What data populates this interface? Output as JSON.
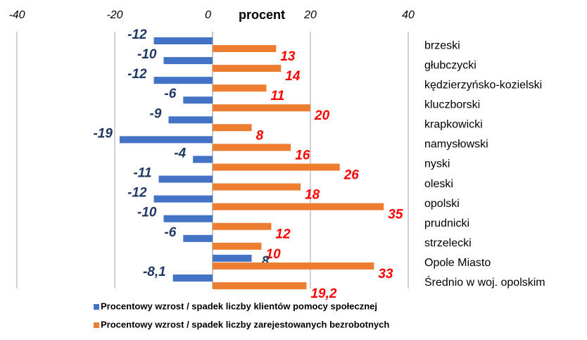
{
  "chart_data": {
    "type": "barh",
    "x_label": "procent",
    "categories": [
      "brzeski",
      "głubczycki",
      "kędzierzyńsko-kozielski",
      "kluczborski",
      "krapkowicki",
      "namysłowski",
      "nyski",
      "oleski",
      "opolski",
      "prudnicki",
      "strzelecki",
      "Opole Miasto",
      "Średnio w woj. opolskim"
    ],
    "series": [
      {
        "name": "Procentowy wzrost / spadek liczby klientów pomocy społecznej",
        "color": "#4472c4",
        "label_color": "#1f3864",
        "values": [
          -12,
          -10,
          -12,
          -6,
          -9,
          -19,
          -4,
          -11,
          -12,
          -10,
          -6,
          8,
          -8.1
        ],
        "value_labels": [
          "-12",
          "-10",
          "-12",
          "-6",
          "-9",
          "-19",
          "-4",
          "-11",
          "-12",
          "-10",
          "-6",
          "8",
          "-8,1"
        ]
      },
      {
        "name": "Procentowy wzrost / spadek liczby zarejestowanych bezrobotnych",
        "color": "#ed7d31",
        "label_color": "#ff0000",
        "values": [
          13,
          14,
          11,
          20,
          8,
          16,
          26,
          18,
          35,
          12,
          10,
          33,
          19.2
        ],
        "value_labels": [
          "13",
          "14",
          "11",
          "20",
          "8",
          "16",
          "26",
          "18",
          "35",
          "12",
          "10",
          "33",
          "19,2"
        ]
      }
    ],
    "xlim": [
      -40,
      40
    ],
    "xticks": [
      -40,
      -20,
      0,
      20,
      40
    ],
    "grid": true
  }
}
